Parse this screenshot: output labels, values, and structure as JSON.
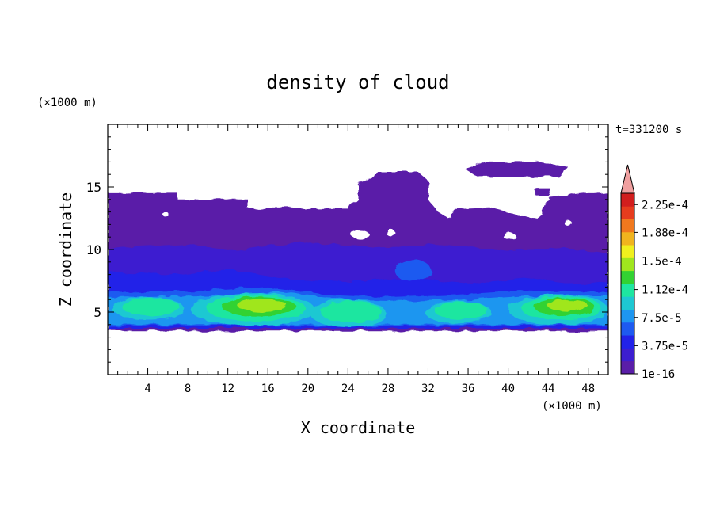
{
  "chart_data": {
    "type": "heatmap",
    "title": "density of cloud",
    "xlabel": "X coordinate",
    "ylabel": "Z coordinate",
    "x_unit": "(×1000 m)",
    "y_unit": "(×1000 m)",
    "time_label": "t=331200 s",
    "xlim": [
      0,
      50
    ],
    "ylim": [
      0,
      20
    ],
    "x_ticks": [
      4,
      8,
      12,
      16,
      20,
      24,
      28,
      32,
      36,
      40,
      44,
      48
    ],
    "x_tick_labels": [
      "4",
      "8",
      "12",
      "16",
      "20",
      "24",
      "28",
      "32",
      "36",
      "40",
      "44",
      "48"
    ],
    "y_ticks": [
      5,
      10,
      15
    ],
    "y_tick_labels": [
      "5",
      "10",
      "15"
    ],
    "colorbar": {
      "min": 1e-16,
      "max": 0.00024,
      "extend": "max",
      "tick_labels": [
        "2.25e-4",
        "1.88e-4",
        "1.5e-4",
        "1.12e-4",
        "7.5e-5",
        "3.75e-5",
        "1e-16"
      ],
      "tick_values": [
        0.000225,
        0.000188,
        0.00015,
        0.000112,
        7.5e-05,
        3.75e-05,
        1e-16
      ],
      "levels": [
        1e-16,
        1.875e-05,
        3.75e-05,
        5.625e-05,
        7.5e-05,
        9.375e-05,
        0.000112,
        0.000131,
        0.00015,
        0.000169,
        0.000188,
        0.000206,
        0.000225
      ],
      "colors": [
        "#5a1ea8",
        "#3c1ed0",
        "#2222e8",
        "#1e5af0",
        "#1e96f0",
        "#1ec8d2",
        "#1ee6a0",
        "#32d232",
        "#a0e61e",
        "#f0f01e",
        "#f0b41e",
        "#f0781e",
        "#e63c1e",
        "#d21e1e"
      ],
      "extend_color": "#f0a0a0"
    },
    "cloud_regions": [
      {
        "name": "upper anvil left",
        "x": [
          0,
          17
        ],
        "z": [
          3.5,
          14.5
        ],
        "level": 0
      },
      {
        "name": "upper anvil middle",
        "x": [
          17,
          27
        ],
        "z": [
          3.5,
          16.2
        ],
        "level": 0
      },
      {
        "name": "upper anvil right",
        "x": [
          27,
          50
        ],
        "z": [
          3.5,
          14.5
        ],
        "level": 0
      },
      {
        "name": "detached cloud top right",
        "x": [
          36,
          46
        ],
        "z": [
          15.7,
          17
        ],
        "level": 0
      },
      {
        "name": "layer 4.5-7 km",
        "x": [
          0,
          50
        ],
        "z": [
          3.7,
          7
        ],
        "level": 2
      },
      {
        "name": "core 1",
        "x": [
          9,
          20
        ],
        "z": [
          4.5,
          6.4
        ],
        "level": 8,
        "peak": 0.00019
      },
      {
        "name": "core 2",
        "x": [
          21,
          28
        ],
        "z": [
          4.3,
          5.8
        ],
        "level": 6,
        "peak": 0.00013
      },
      {
        "name": "core 3",
        "x": [
          32,
          38
        ],
        "z": [
          4.6,
          5.8
        ],
        "level": 5,
        "peak": 0.00012
      },
      {
        "name": "core 4",
        "x": [
          40,
          50
        ],
        "z": [
          4.5,
          6.2
        ],
        "level": 8,
        "peak": 0.00019
      }
    ]
  }
}
